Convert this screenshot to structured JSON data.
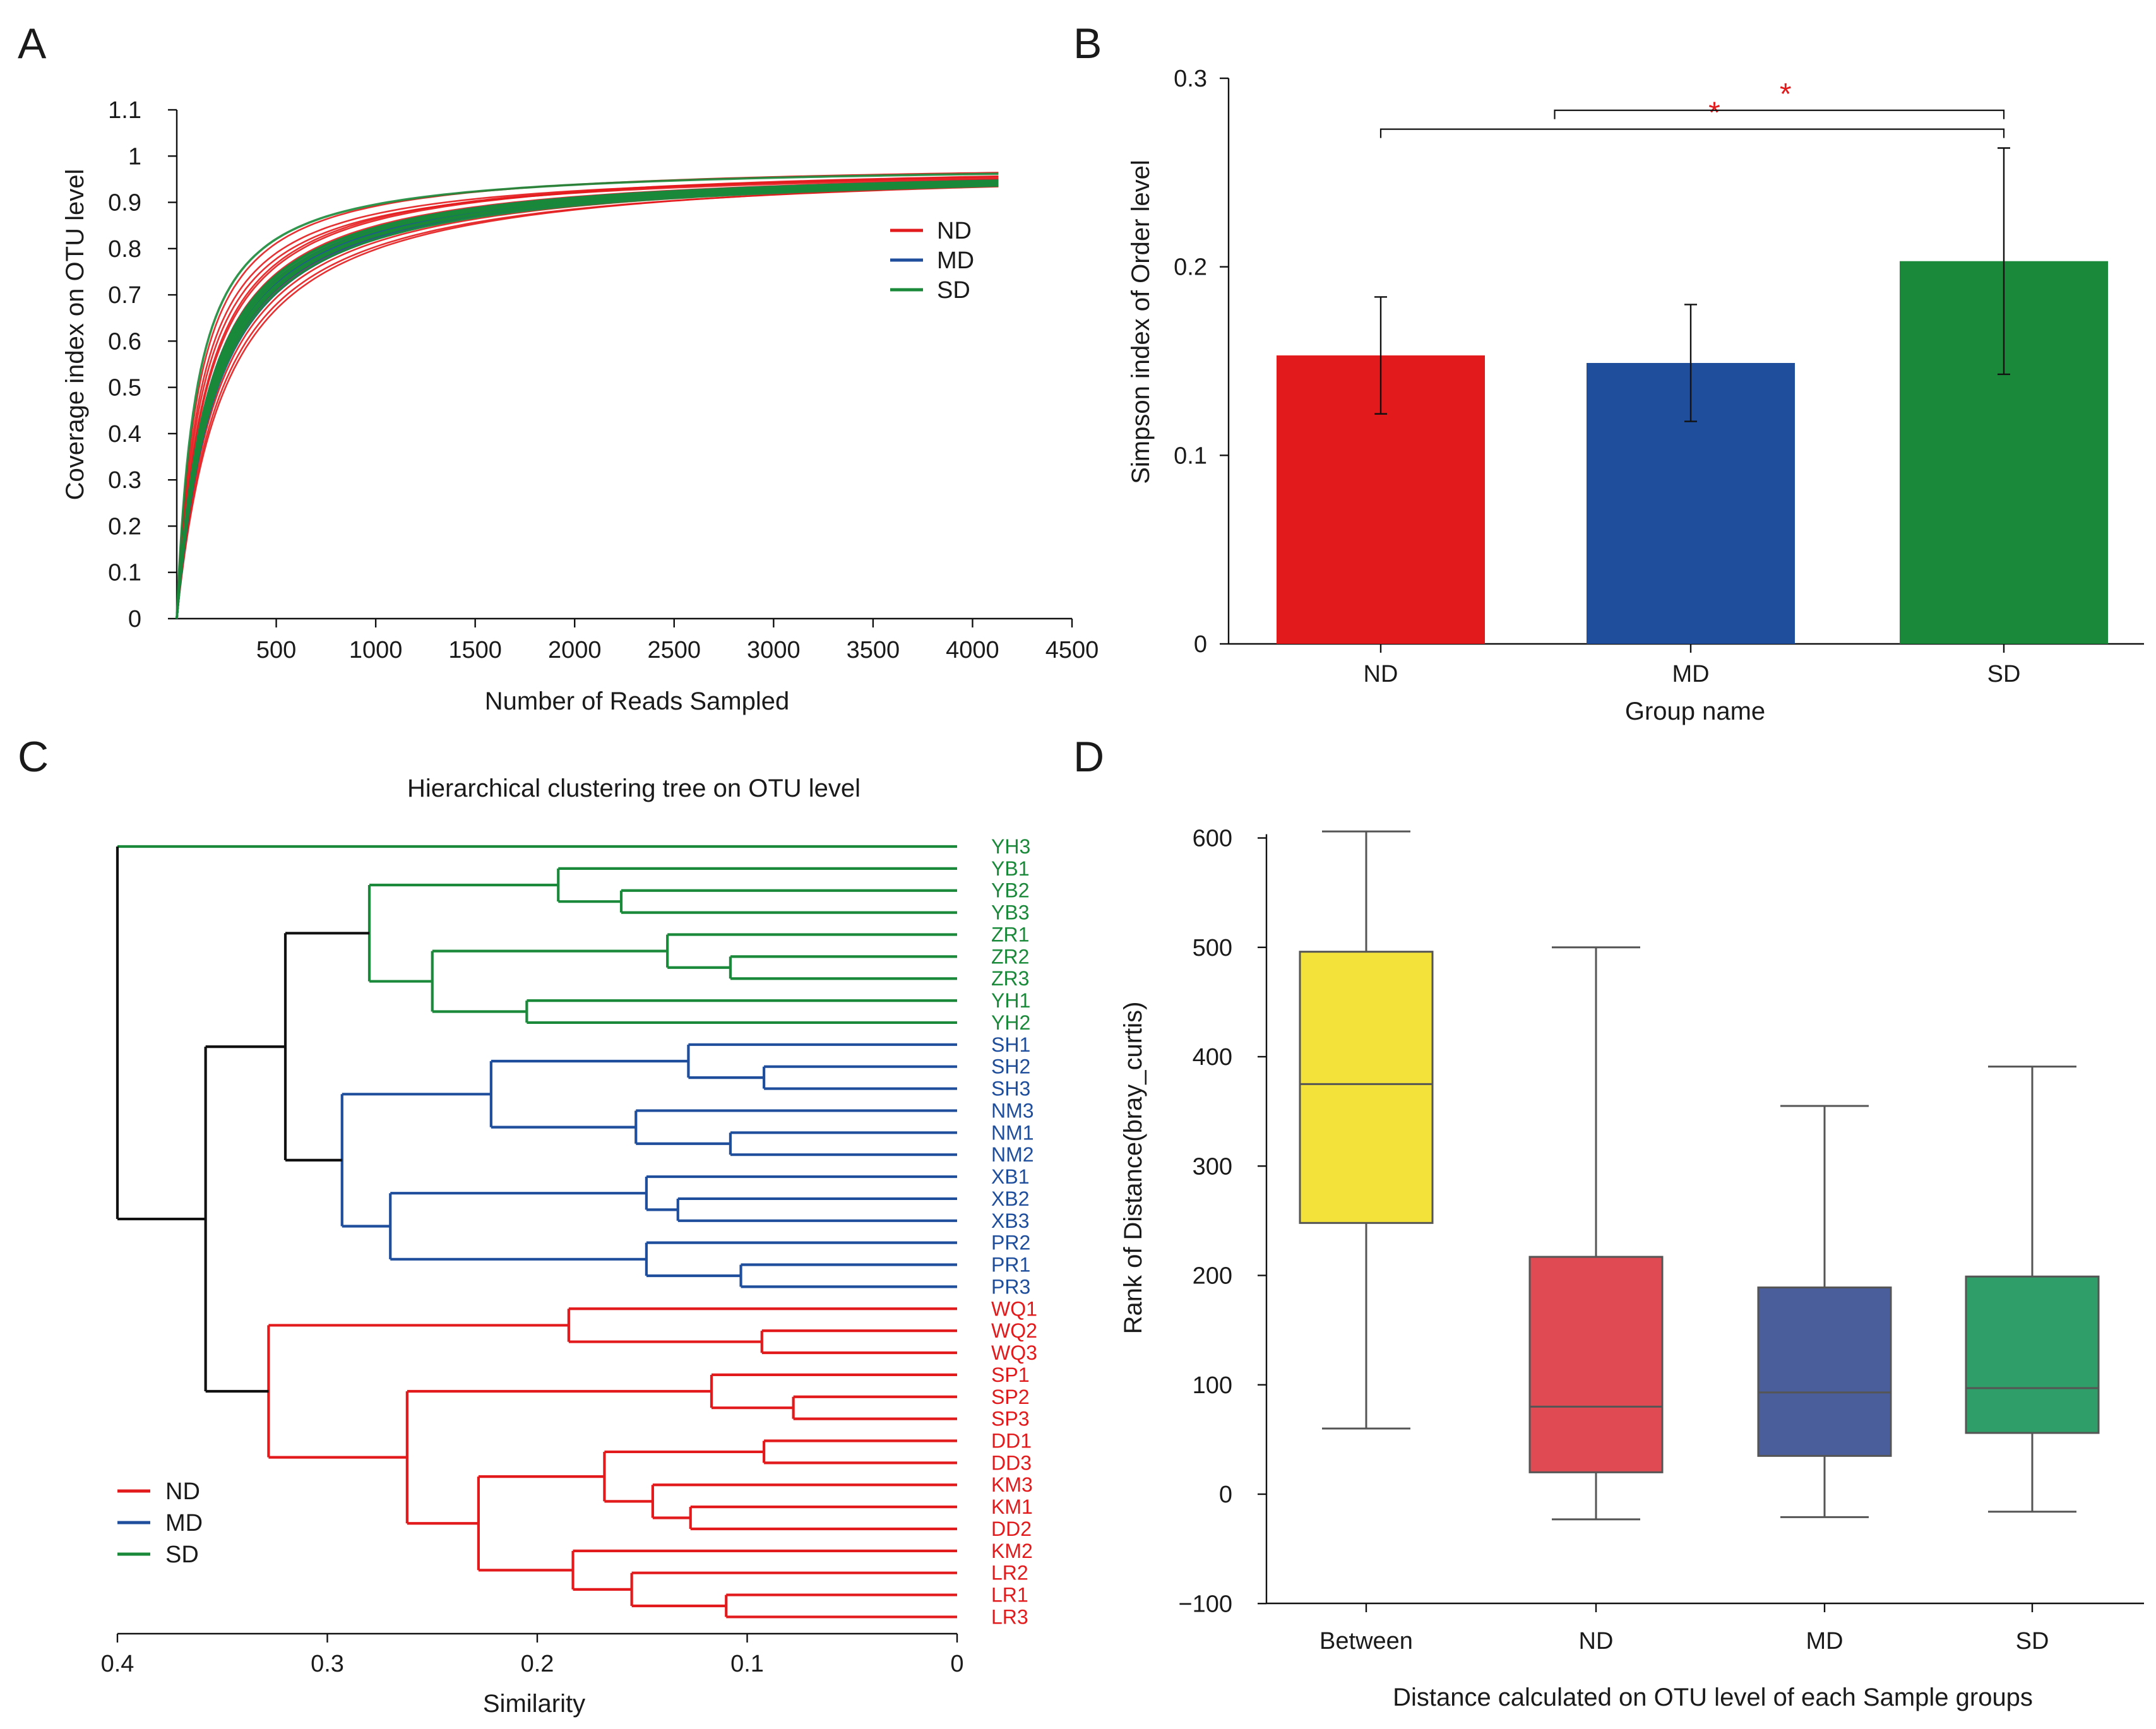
{
  "colors": {
    "ND": "#e31a1c",
    "MD": "#1f4e9c",
    "SD": "#1a8a3a",
    "axis": "#111111",
    "box_between": "#f2e23a",
    "box_ND": "#e04a52",
    "box_MD": "#4a5e9c",
    "box_SD": "#2f9e68",
    "whisker": "#555555",
    "star": "#e31a1c",
    "root": "#111111"
  },
  "chart_data": [
    {
      "panel": "A",
      "type": "line",
      "title": "",
      "xlabel": "Number of Reads Sampled",
      "ylabel": "Coverage index on OTU level",
      "xlim": [
        0,
        4500
      ],
      "ylim": [
        0,
        1.1
      ],
      "xticks": [
        500,
        1000,
        1500,
        2000,
        2500,
        3000,
        3500,
        4000,
        4500
      ],
      "yticks": [
        0,
        0.1,
        0.2,
        0.3,
        0.4,
        0.5,
        0.6,
        0.7,
        0.8,
        0.9,
        1,
        1.1
      ],
      "legend": [
        "ND",
        "MD",
        "SD"
      ],
      "legend_position": "right",
      "x_end": 4130,
      "series": [
        {
          "name": "ND",
          "final": 0.99,
          "k": 145
        },
        {
          "name": "ND",
          "final": 0.985,
          "k": 210
        },
        {
          "name": "ND",
          "final": 0.98,
          "k": 120
        },
        {
          "name": "ND",
          "final": 0.99,
          "k": 180
        },
        {
          "name": "ND",
          "final": 0.985,
          "k": 160
        },
        {
          "name": "ND",
          "final": 0.99,
          "k": 240
        },
        {
          "name": "ND",
          "final": 0.98,
          "k": 130
        },
        {
          "name": "ND",
          "final": 0.985,
          "k": 195
        },
        {
          "name": "ND",
          "final": 0.99,
          "k": 110
        },
        {
          "name": "ND",
          "final": 0.985,
          "k": 225
        },
        {
          "name": "ND",
          "final": 0.98,
          "k": 170
        },
        {
          "name": "ND",
          "final": 0.99,
          "k": 150
        },
        {
          "name": "MD",
          "final": 0.985,
          "k": 165
        },
        {
          "name": "MD",
          "final": 0.98,
          "k": 175
        },
        {
          "name": "MD",
          "final": 0.985,
          "k": 185
        },
        {
          "name": "MD",
          "final": 0.98,
          "k": 170
        },
        {
          "name": "MD",
          "final": 0.985,
          "k": 190
        },
        {
          "name": "MD",
          "final": 0.98,
          "k": 160
        },
        {
          "name": "MD",
          "final": 0.985,
          "k": 200
        },
        {
          "name": "MD",
          "final": 0.98,
          "k": 180
        },
        {
          "name": "MD",
          "final": 0.985,
          "k": 172
        },
        {
          "name": "MD",
          "final": 0.98,
          "k": 168
        },
        {
          "name": "MD",
          "final": 0.985,
          "k": 178
        },
        {
          "name": "MD",
          "final": 0.98,
          "k": 188
        },
        {
          "name": "SD",
          "final": 0.985,
          "k": 100
        },
        {
          "name": "SD",
          "final": 0.98,
          "k": 160
        },
        {
          "name": "SD",
          "final": 0.985,
          "k": 175
        },
        {
          "name": "SD",
          "final": 0.98,
          "k": 185
        },
        {
          "name": "SD",
          "final": 0.985,
          "k": 165
        },
        {
          "name": "SD",
          "final": 0.98,
          "k": 170
        },
        {
          "name": "SD",
          "final": 0.985,
          "k": 190
        },
        {
          "name": "SD",
          "final": 0.98,
          "k": 180
        },
        {
          "name": "SD",
          "final": 0.985,
          "k": 176
        },
        {
          "name": "SD",
          "final": 0.98,
          "k": 182
        },
        {
          "name": "SD",
          "final": 0.985,
          "k": 168
        },
        {
          "name": "SD",
          "final": 0.98,
          "k": 195
        }
      ]
    },
    {
      "panel": "B",
      "type": "bar",
      "title": "",
      "xlabel": "Group name",
      "ylabel": "Simpson index of Order level",
      "ylim": [
        0,
        0.3
      ],
      "yticks": [
        0,
        0.1,
        0.2,
        0.3
      ],
      "categories": [
        "ND",
        "MD",
        "SD"
      ],
      "values": [
        0.153,
        0.149,
        0.203
      ],
      "errors": [
        0.031,
        0.031,
        0.06
      ],
      "significance": [
        {
          "from": "ND",
          "to": "SD",
          "label": "*",
          "level": 0.273
        },
        {
          "from": "MD",
          "to": "SD",
          "label": "*",
          "level": 0.283
        }
      ]
    },
    {
      "panel": "C",
      "type": "dendrogram",
      "title": "Hierarchical clustering tree on OTU level",
      "xlabel": "Similarity",
      "xlim": [
        0.4,
        0
      ],
      "xticks": [
        0.4,
        0.3,
        0.2,
        0.1,
        0
      ],
      "legend": [
        "ND",
        "MD",
        "SD"
      ],
      "legend_position": "bottom-left",
      "leaves": [
        {
          "label": "YH3",
          "group": "SD"
        },
        {
          "label": "YB1",
          "group": "SD"
        },
        {
          "label": "YB2",
          "group": "SD"
        },
        {
          "label": "YB3",
          "group": "SD"
        },
        {
          "label": "ZR1",
          "group": "SD"
        },
        {
          "label": "ZR2",
          "group": "SD"
        },
        {
          "label": "ZR3",
          "group": "SD"
        },
        {
          "label": "YH1",
          "group": "SD"
        },
        {
          "label": "YH2",
          "group": "SD"
        },
        {
          "label": "SH1",
          "group": "MD"
        },
        {
          "label": "SH2",
          "group": "MD"
        },
        {
          "label": "SH3",
          "group": "MD"
        },
        {
          "label": "NM3",
          "group": "MD"
        },
        {
          "label": "NM1",
          "group": "MD"
        },
        {
          "label": "NM2",
          "group": "MD"
        },
        {
          "label": "XB1",
          "group": "MD"
        },
        {
          "label": "XB2",
          "group": "MD"
        },
        {
          "label": "XB3",
          "group": "MD"
        },
        {
          "label": "PR2",
          "group": "MD"
        },
        {
          "label": "PR1",
          "group": "MD"
        },
        {
          "label": "PR3",
          "group": "MD"
        },
        {
          "label": "WQ1",
          "group": "ND"
        },
        {
          "label": "WQ2",
          "group": "ND"
        },
        {
          "label": "WQ3",
          "group": "ND"
        },
        {
          "label": "SP1",
          "group": "ND"
        },
        {
          "label": "SP2",
          "group": "ND"
        },
        {
          "label": "SP3",
          "group": "ND"
        },
        {
          "label": "DD1",
          "group": "ND"
        },
        {
          "label": "DD3",
          "group": "ND"
        },
        {
          "label": "KM3",
          "group": "ND"
        },
        {
          "label": "KM1",
          "group": "ND"
        },
        {
          "label": "DD2",
          "group": "ND"
        },
        {
          "label": "KM2",
          "group": "ND"
        },
        {
          "label": "LR2",
          "group": "ND"
        },
        {
          "label": "LR1",
          "group": "ND"
        },
        {
          "label": "LR3",
          "group": "ND"
        }
      ],
      "merges": [
        {
          "id": "yb23",
          "a": "YB2",
          "b": "YB3",
          "h": 0.16,
          "g": "SD"
        },
        {
          "id": "yb",
          "a": "YB1",
          "b": "yb23",
          "h": 0.19,
          "g": "SD"
        },
        {
          "id": "zr23",
          "a": "ZR2",
          "b": "ZR3",
          "h": 0.108,
          "g": "SD"
        },
        {
          "id": "zr",
          "a": "ZR1",
          "b": "zr23",
          "h": 0.138,
          "g": "SD"
        },
        {
          "id": "yh12",
          "a": "YH1",
          "b": "YH2",
          "h": 0.205,
          "g": "SD"
        },
        {
          "id": "zryh",
          "a": "zr",
          "b": "yh12",
          "h": 0.25,
          "g": "SD"
        },
        {
          "id": "sdsub",
          "a": "yb",
          "b": "zryh",
          "h": 0.28,
          "g": "SD"
        },
        {
          "id": "sh23",
          "a": "SH2",
          "b": "SH3",
          "h": 0.092,
          "g": "MD"
        },
        {
          "id": "sh",
          "a": "SH1",
          "b": "sh23",
          "h": 0.128,
          "g": "MD"
        },
        {
          "id": "nm12",
          "a": "NM1",
          "b": "NM2",
          "h": 0.108,
          "g": "MD"
        },
        {
          "id": "nm",
          "a": "NM3",
          "b": "nm12",
          "h": 0.153,
          "g": "MD"
        },
        {
          "id": "shnm",
          "a": "sh",
          "b": "nm",
          "h": 0.222,
          "g": "MD"
        },
        {
          "id": "xb23",
          "a": "XB2",
          "b": "XB3",
          "h": 0.133,
          "g": "MD"
        },
        {
          "id": "xb",
          "a": "XB1",
          "b": "xb23",
          "h": 0.148,
          "g": "MD"
        },
        {
          "id": "pr13",
          "a": "PR1",
          "b": "PR3",
          "h": 0.103,
          "g": "MD"
        },
        {
          "id": "pr",
          "a": "PR2",
          "b": "pr13",
          "h": 0.148,
          "g": "MD"
        },
        {
          "id": "xbpr",
          "a": "xb",
          "b": "pr",
          "h": 0.27,
          "g": "MD"
        },
        {
          "id": "md",
          "a": "shnm",
          "b": "xbpr",
          "h": 0.293,
          "g": "MD"
        },
        {
          "id": "sdmd",
          "a": "sdsub",
          "b": "md",
          "h": 0.32,
          "g": "root"
        },
        {
          "id": "wq23",
          "a": "WQ2",
          "b": "WQ3",
          "h": 0.093,
          "g": "ND"
        },
        {
          "id": "wq",
          "a": "WQ1",
          "b": "wq23",
          "h": 0.185,
          "g": "ND"
        },
        {
          "id": "sp23",
          "a": "SP2",
          "b": "SP3",
          "h": 0.078,
          "g": "ND"
        },
        {
          "id": "sp",
          "a": "SP1",
          "b": "sp23",
          "h": 0.117,
          "g": "ND"
        },
        {
          "id": "dd13",
          "a": "DD1",
          "b": "DD3",
          "h": 0.092,
          "g": "ND"
        },
        {
          "id": "km1dd2",
          "a": "KM1",
          "b": "DD2",
          "h": 0.127,
          "g": "ND"
        },
        {
          "id": "km3x",
          "a": "KM3",
          "b": "km1dd2",
          "h": 0.145,
          "g": "ND"
        },
        {
          "id": "ddkm",
          "a": "dd13",
          "b": "km3x",
          "h": 0.168,
          "g": "ND"
        },
        {
          "id": "lr13",
          "a": "LR1",
          "b": "LR3",
          "h": 0.11,
          "g": "ND"
        },
        {
          "id": "lr",
          "a": "LR2",
          "b": "lr13",
          "h": 0.155,
          "g": "ND"
        },
        {
          "id": "kmlr",
          "a": "KM2",
          "b": "lr",
          "h": 0.183,
          "g": "ND"
        },
        {
          "id": "ddkmlr",
          "a": "ddkm",
          "b": "kmlr",
          "h": 0.228,
          "g": "ND"
        },
        {
          "id": "spd",
          "a": "sp",
          "b": "ddkmlr",
          "h": 0.262,
          "g": "ND"
        },
        {
          "id": "nd",
          "a": "wq",
          "b": "spd",
          "h": 0.328,
          "g": "ND"
        },
        {
          "id": "mid",
          "a": "sdmd",
          "b": "nd",
          "h": 0.358,
          "g": "root"
        },
        {
          "id": "top",
          "a": "YH3",
          "b": "mid",
          "h": 0.4,
          "g": "root",
          "a_color": "SD"
        }
      ]
    },
    {
      "panel": "D",
      "type": "box",
      "title": "",
      "xlabel": "Distance calculated on OTU level of each Sample groups",
      "ylabel": "Rank of Distance(bray_curtis)",
      "ylim": [
        -100,
        600
      ],
      "yticks": [
        -100,
        0,
        100,
        200,
        300,
        400,
        500,
        600
      ],
      "categories": [
        "Between",
        "ND",
        "MD",
        "SD"
      ],
      "boxes": [
        {
          "name": "Between",
          "min": 60,
          "q1": 248,
          "median": 375,
          "q3": 496,
          "max": 606
        },
        {
          "name": "ND",
          "min": -23,
          "q1": 20,
          "median": 80,
          "q3": 217,
          "max": 500
        },
        {
          "name": "MD",
          "min": -21,
          "q1": 35,
          "median": 93,
          "q3": 189,
          "max": 355
        },
        {
          "name": "SD",
          "min": -16,
          "q1": 56,
          "median": 97,
          "q3": 199,
          "max": 391
        }
      ]
    }
  ],
  "panels": {
    "a_letter": "A",
    "b_letter": "B",
    "c_letter": "C",
    "d_letter": "D"
  }
}
